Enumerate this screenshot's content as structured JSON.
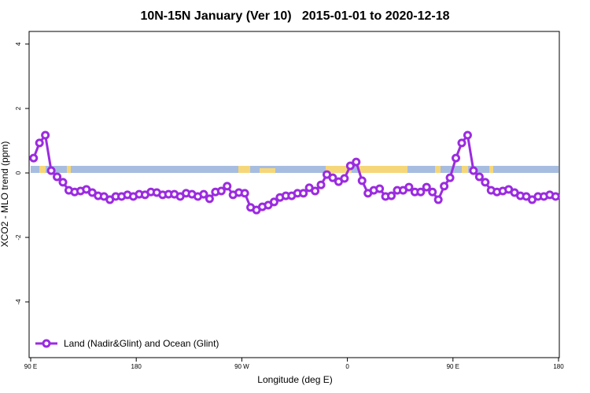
{
  "chart_data": {
    "type": "line",
    "title": "10N-15N January (Ver 10)   2015-01-01 to 2020-12-18",
    "x_label": "Longitude (deg E)",
    "y_label": "XCO2 - MLO trend (ppm)",
    "xlim": [
      90,
      540
    ],
    "ylim": [
      -5.73,
      4.39
    ],
    "xticks": [
      {
        "value": 90,
        "label": "90 E"
      },
      180,
      {
        "value": 270,
        "label": "90 W"
      },
      {
        "value": 360,
        "label": "0"
      },
      {
        "value": 450,
        "label": "90 E"
      },
      {
        "value": 540,
        "label": "180"
      }
    ],
    "yticks": [
      4,
      2,
      0,
      -2,
      -4
    ],
    "legend": "bottom-left",
    "x": [
      92.5,
      97.5,
      102.5,
      107.5,
      112.5,
      117.5,
      122.5,
      127.5,
      132.5,
      137.5,
      142.5,
      147.5,
      152.5,
      157.5,
      162.5,
      167.5,
      172.5,
      177.5,
      182.5,
      187.5,
      192.5,
      197.5,
      202.5,
      207.5,
      212.5,
      217.5,
      222.5,
      227.5,
      232.5,
      237.5,
      242.5,
      247.5,
      252.5,
      257.5,
      262.5,
      267.5,
      272.5,
      277.5,
      282.5,
      287.5,
      292.5,
      297.5,
      302.5,
      307.5,
      312.5,
      317.5,
      322.5,
      327.5,
      332.5,
      337.5,
      342.5,
      347.5,
      352.5,
      357.5,
      362.5,
      367.5,
      372.5,
      377.5,
      382.5,
      387.5,
      392.5,
      397.5,
      402.5,
      407.5,
      412.5,
      417.5,
      422.5,
      427.5,
      432.5,
      437.5,
      442.5,
      447.5,
      452.5,
      457.5,
      462.5,
      467.5,
      472.5,
      477.5,
      482.5,
      487.5,
      492.5,
      497.5,
      502.5,
      507.5,
      512.5,
      517.5,
      522.5,
      527.5,
      532.5,
      537.5
    ],
    "series": [
      {
        "name": "Land (Nadir&Glint) and Ocean (Glint)",
        "color": "#9b2be0",
        "values": [
          0.46,
          0.93,
          1.17,
          0.07,
          -0.12,
          -0.29,
          -0.54,
          -0.59,
          -0.56,
          -0.51,
          -0.61,
          -0.71,
          -0.73,
          -0.83,
          -0.73,
          -0.73,
          -0.68,
          -0.73,
          -0.66,
          -0.68,
          -0.59,
          -0.61,
          -0.68,
          -0.66,
          -0.66,
          -0.73,
          -0.63,
          -0.66,
          -0.73,
          -0.66,
          -0.8,
          -0.59,
          -0.56,
          -0.41,
          -0.68,
          -0.61,
          -0.63,
          -1.07,
          -1.15,
          -1.05,
          -1.0,
          -0.9,
          -0.76,
          -0.71,
          -0.71,
          -0.63,
          -0.63,
          -0.46,
          -0.56,
          -0.37,
          -0.05,
          -0.15,
          -0.27,
          -0.17,
          0.22,
          0.34,
          -0.24,
          -0.63,
          -0.54,
          -0.49,
          -0.73,
          -0.71,
          -0.54,
          -0.54,
          -0.44,
          -0.59,
          -0.59,
          -0.44,
          -0.59,
          -0.83,
          -0.41,
          -0.15,
          0.46,
          0.93,
          1.17,
          0.07,
          -0.12,
          -0.29,
          -0.54,
          -0.59,
          -0.56,
          -0.51,
          -0.61,
          -0.71,
          -0.73,
          -0.83,
          -0.73,
          -0.73,
          -0.68,
          -0.73
        ]
      }
    ]
  }
}
